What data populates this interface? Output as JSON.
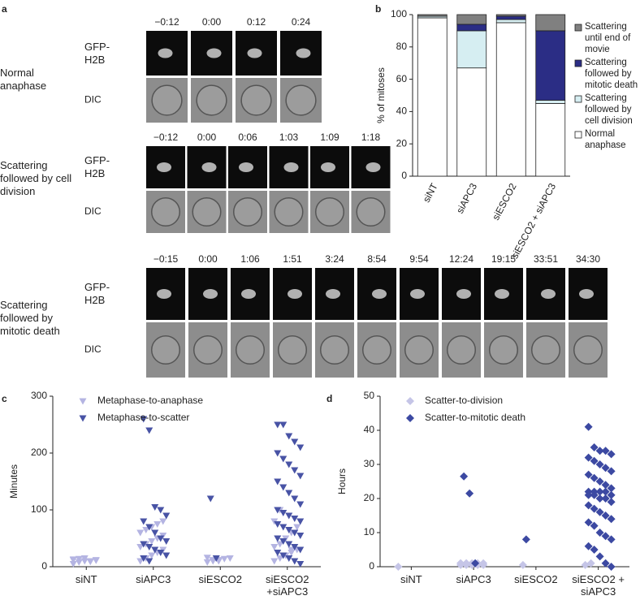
{
  "panel_labels": [
    "a",
    "b",
    "c",
    "d"
  ],
  "microscopy": [
    {
      "label": "Normal anaphase",
      "channels": [
        "GFP-H2B",
        "DIC"
      ],
      "times": [
        "−0:12",
        "0:00",
        "0:12",
        "0:24"
      ]
    },
    {
      "label": "Scattering followed by cell division",
      "channels": [
        "GFP-H2B",
        "DIC"
      ],
      "times": [
        "−0:12",
        "0:00",
        "0:06",
        "1:03",
        "1:09",
        "1:18"
      ]
    },
    {
      "label": "Scattering followed by mitotic death",
      "channels": [
        "GFP-H2B",
        "DIC"
      ],
      "times": [
        "−0:15",
        "0:00",
        "1:06",
        "1:51",
        "3:24",
        "8:54",
        "9:54",
        "12:24",
        "19:15",
        "33:51",
        "34:30"
      ]
    }
  ],
  "chart_data": [
    {
      "type": "stacked_bar",
      "ylabel": "% of mitoses",
      "legend": "right",
      "categories": [
        "siNT",
        "siAPC3",
        "siESCO2",
        "siESCO2 + siAPC3"
      ],
      "ylim": [
        0,
        100
      ],
      "yticks": [
        0,
        20,
        40,
        60,
        80,
        100
      ],
      "series": [
        {
          "name": "Normal anaphase",
          "color": "#ffffff",
          "values": [
            98,
            67,
            95,
            45
          ]
        },
        {
          "name": "Scattering followed by cell division",
          "color": "#d6eef2",
          "values": [
            1,
            23,
            2,
            2
          ]
        },
        {
          "name": "Scattering followed by mitotic death",
          "color": "#2b2d85",
          "values": [
            0,
            4,
            2,
            43
          ]
        },
        {
          "name": "Scattering until end of movie",
          "color": "#808080",
          "values": [
            1,
            6,
            1,
            10
          ]
        }
      ]
    },
    {
      "type": "strip",
      "ylabel": "Minutes",
      "legend": "top-left",
      "categories": [
        "siNT",
        "siAPC3",
        "siESCO2",
        "siESCO2 +siAPC3"
      ],
      "ylim": [
        0,
        300
      ],
      "yticks": [
        0,
        100,
        200,
        300
      ],
      "series": [
        {
          "name": "Metaphase-to-anaphase",
          "color": "#b4b4e2",
          "marker": "triangle-down",
          "values": [
            [
              5,
              8,
              10,
              10,
              12,
              12,
              14,
              15,
              9,
              11,
              13
            ],
            [
              10,
              15,
              20,
              25,
              30,
              35,
              40,
              45,
              50,
              55,
              60,
              65,
              70,
              75,
              80
            ],
            [
              8,
              10,
              12,
              14,
              15,
              16,
              12,
              10
            ],
            [
              10,
              15,
              20,
              25,
              30,
              35,
              40,
              50,
              60,
              70,
              80,
              100,
              20,
              30
            ]
          ]
        },
        {
          "name": "Metaphase-to-scatter",
          "color": "#4853a5",
          "marker": "triangle-down",
          "values": [
            [],
            [
              260,
              240,
              105,
              100,
              90,
              80,
              70,
              60,
              50,
              45,
              40,
              35,
              30,
              25,
              20,
              15,
              10
            ],
            [
              120,
              15
            ],
            [
              250,
              250,
              230,
              220,
              210,
              200,
              190,
              180,
              170,
              160,
              150,
              140,
              130,
              120,
              110,
              100,
              95,
              90,
              85,
              80,
              75,
              70,
              65,
              60,
              55,
              50,
              45,
              40,
              35,
              30,
              25,
              20,
              15,
              10,
              5
            ]
          ]
        }
      ]
    },
    {
      "type": "strip",
      "ylabel": "Hours",
      "legend": "top-left",
      "categories": [
        "siNT",
        "siAPC3",
        "siESCO2",
        "siESCO2 + siAPC3"
      ],
      "ylim": [
        0,
        50
      ],
      "yticks": [
        0,
        10,
        20,
        30,
        40,
        50
      ],
      "series": [
        {
          "name": "Scatter-to-division",
          "color": "#c5c5e7",
          "marker": "diamond",
          "values": [
            [
              0
            ],
            [
              1,
              1,
              1,
              1,
              0.5,
              0.5,
              0.5,
              0.5,
              0.5,
              1,
              1,
              1
            ],
            [
              0.5
            ],
            [
              0.5,
              1
            ]
          ]
        },
        {
          "name": "Scatter-to-mitotic death",
          "color": "#3c49a2",
          "marker": "diamond",
          "values": [
            [],
            [
              26.5,
              21.5,
              1
            ],
            [
              8
            ],
            [
              41,
              35,
              34,
              34,
              33,
              32,
              31,
              30,
              29,
              28,
              27,
              26,
              25,
              24,
              23,
              22,
              22,
              22,
              22,
              21,
              21,
              21,
              20,
              20,
              19,
              18,
              17,
              16,
              15,
              14,
              13,
              12,
              10,
              9,
              8,
              6,
              5,
              3,
              1,
              0
            ]
          ]
        }
      ]
    }
  ]
}
